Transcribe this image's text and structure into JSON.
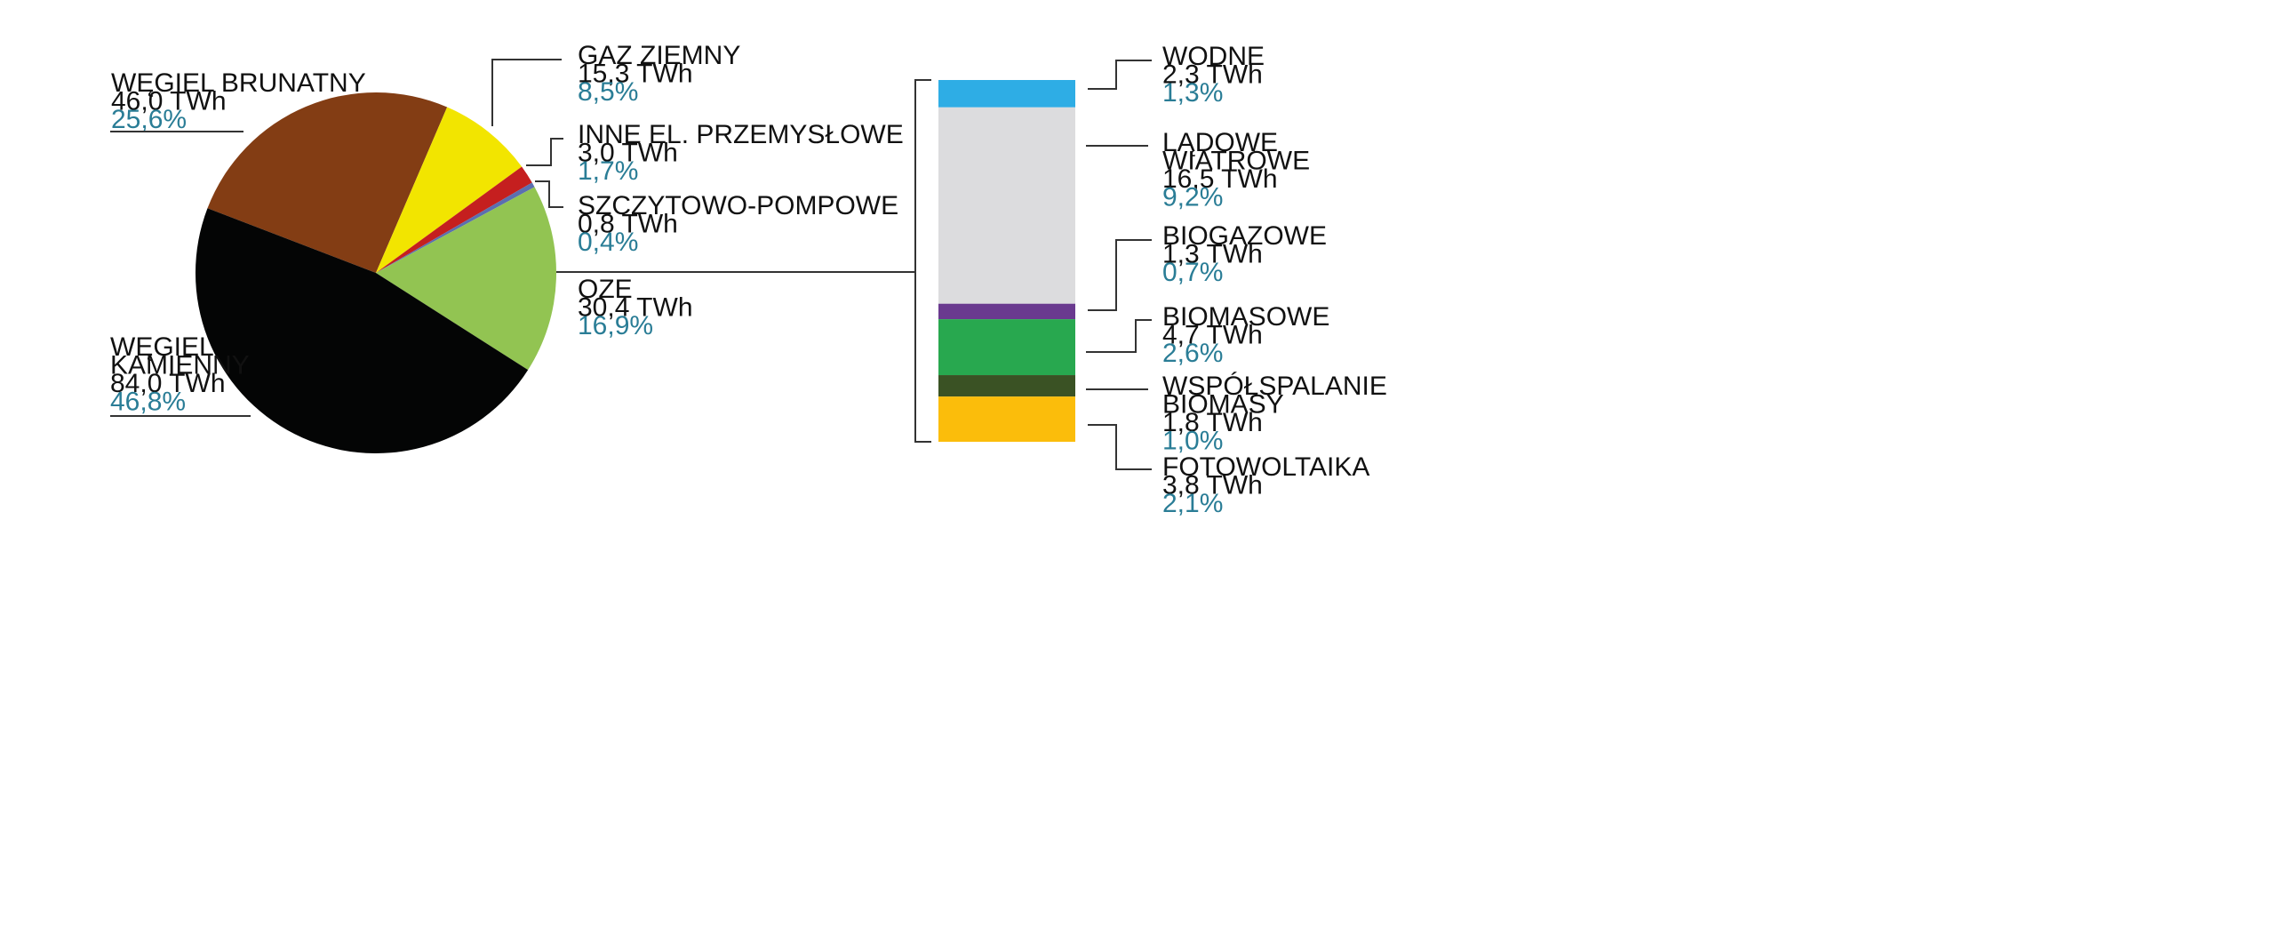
{
  "chart_data": [
    {
      "type": "pie",
      "slices": [
        {
          "label_lines": [
            "WĘGIEL BRUNATNY"
          ],
          "twh": "46,0 TWh",
          "pct": "25,6%",
          "value": 46.0,
          "percent": 25.6,
          "color": "#833d14"
        },
        {
          "label_lines": [
            "GAZ ZIEMNY"
          ],
          "twh": "15,3 TWh",
          "pct": "8,5%",
          "value": 15.3,
          "percent": 8.5,
          "color": "#f2e500"
        },
        {
          "label_lines": [
            "INNE EL. PRZEMYSŁOWE"
          ],
          "twh": "3,0 TWh",
          "pct": "1,7%",
          "value": 3.0,
          "percent": 1.7,
          "color": "#c51f1f"
        },
        {
          "label_lines": [
            "SZCZYTOWO-POMPOWE"
          ],
          "twh": "0,8 TWh",
          "pct": "0,4%",
          "value": 0.8,
          "percent": 0.4,
          "color": "#5b6fb0"
        },
        {
          "label_lines": [
            "OZE"
          ],
          "twh": "30,4 TWh",
          "pct": "16,9%",
          "value": 30.4,
          "percent": 16.9,
          "color": "#92c452"
        },
        {
          "label_lines": [
            "WĘGIEL",
            "KAMIENNY"
          ],
          "twh": "84,0 TWh",
          "pct": "46,8%",
          "value": 84.0,
          "percent": 46.8,
          "color": "#040505"
        }
      ]
    },
    {
      "type": "bar",
      "stacked": true,
      "segments": [
        {
          "label_lines": [
            "WODNE"
          ],
          "twh": "2,3 TWh",
          "pct": "1,3%",
          "value": 2.3,
          "percent": 1.3,
          "color": "#2eade5"
        },
        {
          "label_lines": [
            "LĄDOWE",
            "WIATROWE"
          ],
          "twh": "16,5 TWh",
          "pct": "9,2%",
          "value": 16.5,
          "percent": 9.2,
          "color": "#dcdcde"
        },
        {
          "label_lines": [
            "BIOGAZOWE"
          ],
          "twh": "1,3 TWh",
          "pct": "0,7%",
          "value": 1.3,
          "percent": 0.7,
          "color": "#6a3a8f"
        },
        {
          "label_lines": [
            "BIOMASOWE"
          ],
          "twh": "4,7 TWh",
          "pct": "2,6%",
          "value": 4.7,
          "percent": 2.6,
          "color": "#28a84f"
        },
        {
          "label_lines": [
            "WSPÓŁSPALANIE",
            "BIOMASY"
          ],
          "twh": "1,8 TWh",
          "pct": "1,0%",
          "value": 1.8,
          "percent": 1.0,
          "color": "#3a5224"
        },
        {
          "label_lines": [
            "FOTOWOLTAIKA"
          ],
          "twh": "3,8 TWh",
          "pct": "2,1%",
          "value": 3.8,
          "percent": 2.1,
          "color": "#fbbd0b"
        }
      ]
    }
  ]
}
